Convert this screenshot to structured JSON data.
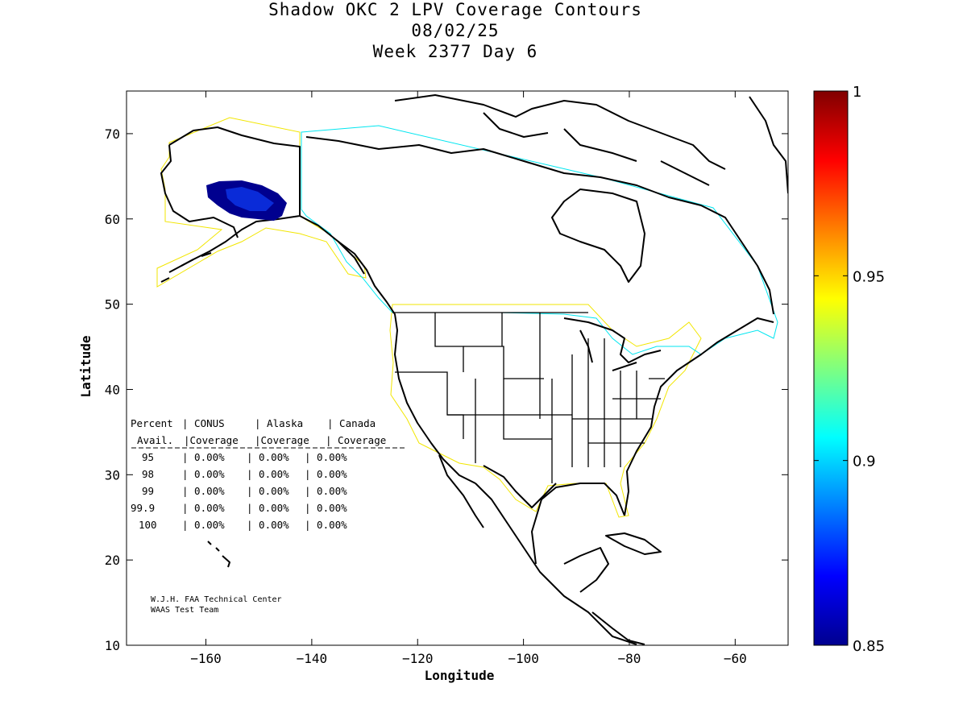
{
  "title": {
    "line1": "Shadow OKC 2 LPV Coverage Contours",
    "line2": "08/02/25",
    "line3": "Week 2377 Day 6"
  },
  "axes": {
    "xlabel": "Longitude",
    "ylabel": "Latitude",
    "xlim": [
      -175,
      -50
    ],
    "ylim": [
      10,
      75
    ],
    "xticks": [
      -160,
      -140,
      -120,
      -100,
      -80,
      -60
    ],
    "yticks": [
      10,
      20,
      30,
      40,
      50,
      60,
      70
    ]
  },
  "colorbar": {
    "range": [
      0.85,
      1
    ],
    "ticks": [
      "1",
      "0.95",
      "0.9",
      "0.85"
    ]
  },
  "table": {
    "header1": [
      "Percent",
      "| CONUS",
      "| Alaska",
      "| Canada"
    ],
    "header2": [
      "Avail.",
      "|Coverage",
      "|Coverage",
      "| Coverage"
    ],
    "rows": [
      [
        "95",
        "| 0.00%",
        "| 0.00%",
        "| 0.00%"
      ],
      [
        "98",
        "| 0.00%",
        "| 0.00%",
        "| 0.00%"
      ],
      [
        "99",
        "| 0.00%",
        "| 0.00%",
        "| 0.00%"
      ],
      [
        "99.9",
        "| 0.00%",
        "| 0.00%",
        "| 0.00%"
      ],
      [
        "100",
        "| 0.00%",
        "| 0.00%",
        "| 0.00%"
      ]
    ]
  },
  "credits": {
    "line1": "W.J.H. FAA Technical Center",
    "line2": "WAAS Test Team"
  },
  "colors": {
    "coverage_blob": "#00008f",
    "coverage_inner": "#0a2bd8",
    "waas_boundary": "#f2e600",
    "canada_boundary": "#00e6f0",
    "coastline": "#000000"
  }
}
